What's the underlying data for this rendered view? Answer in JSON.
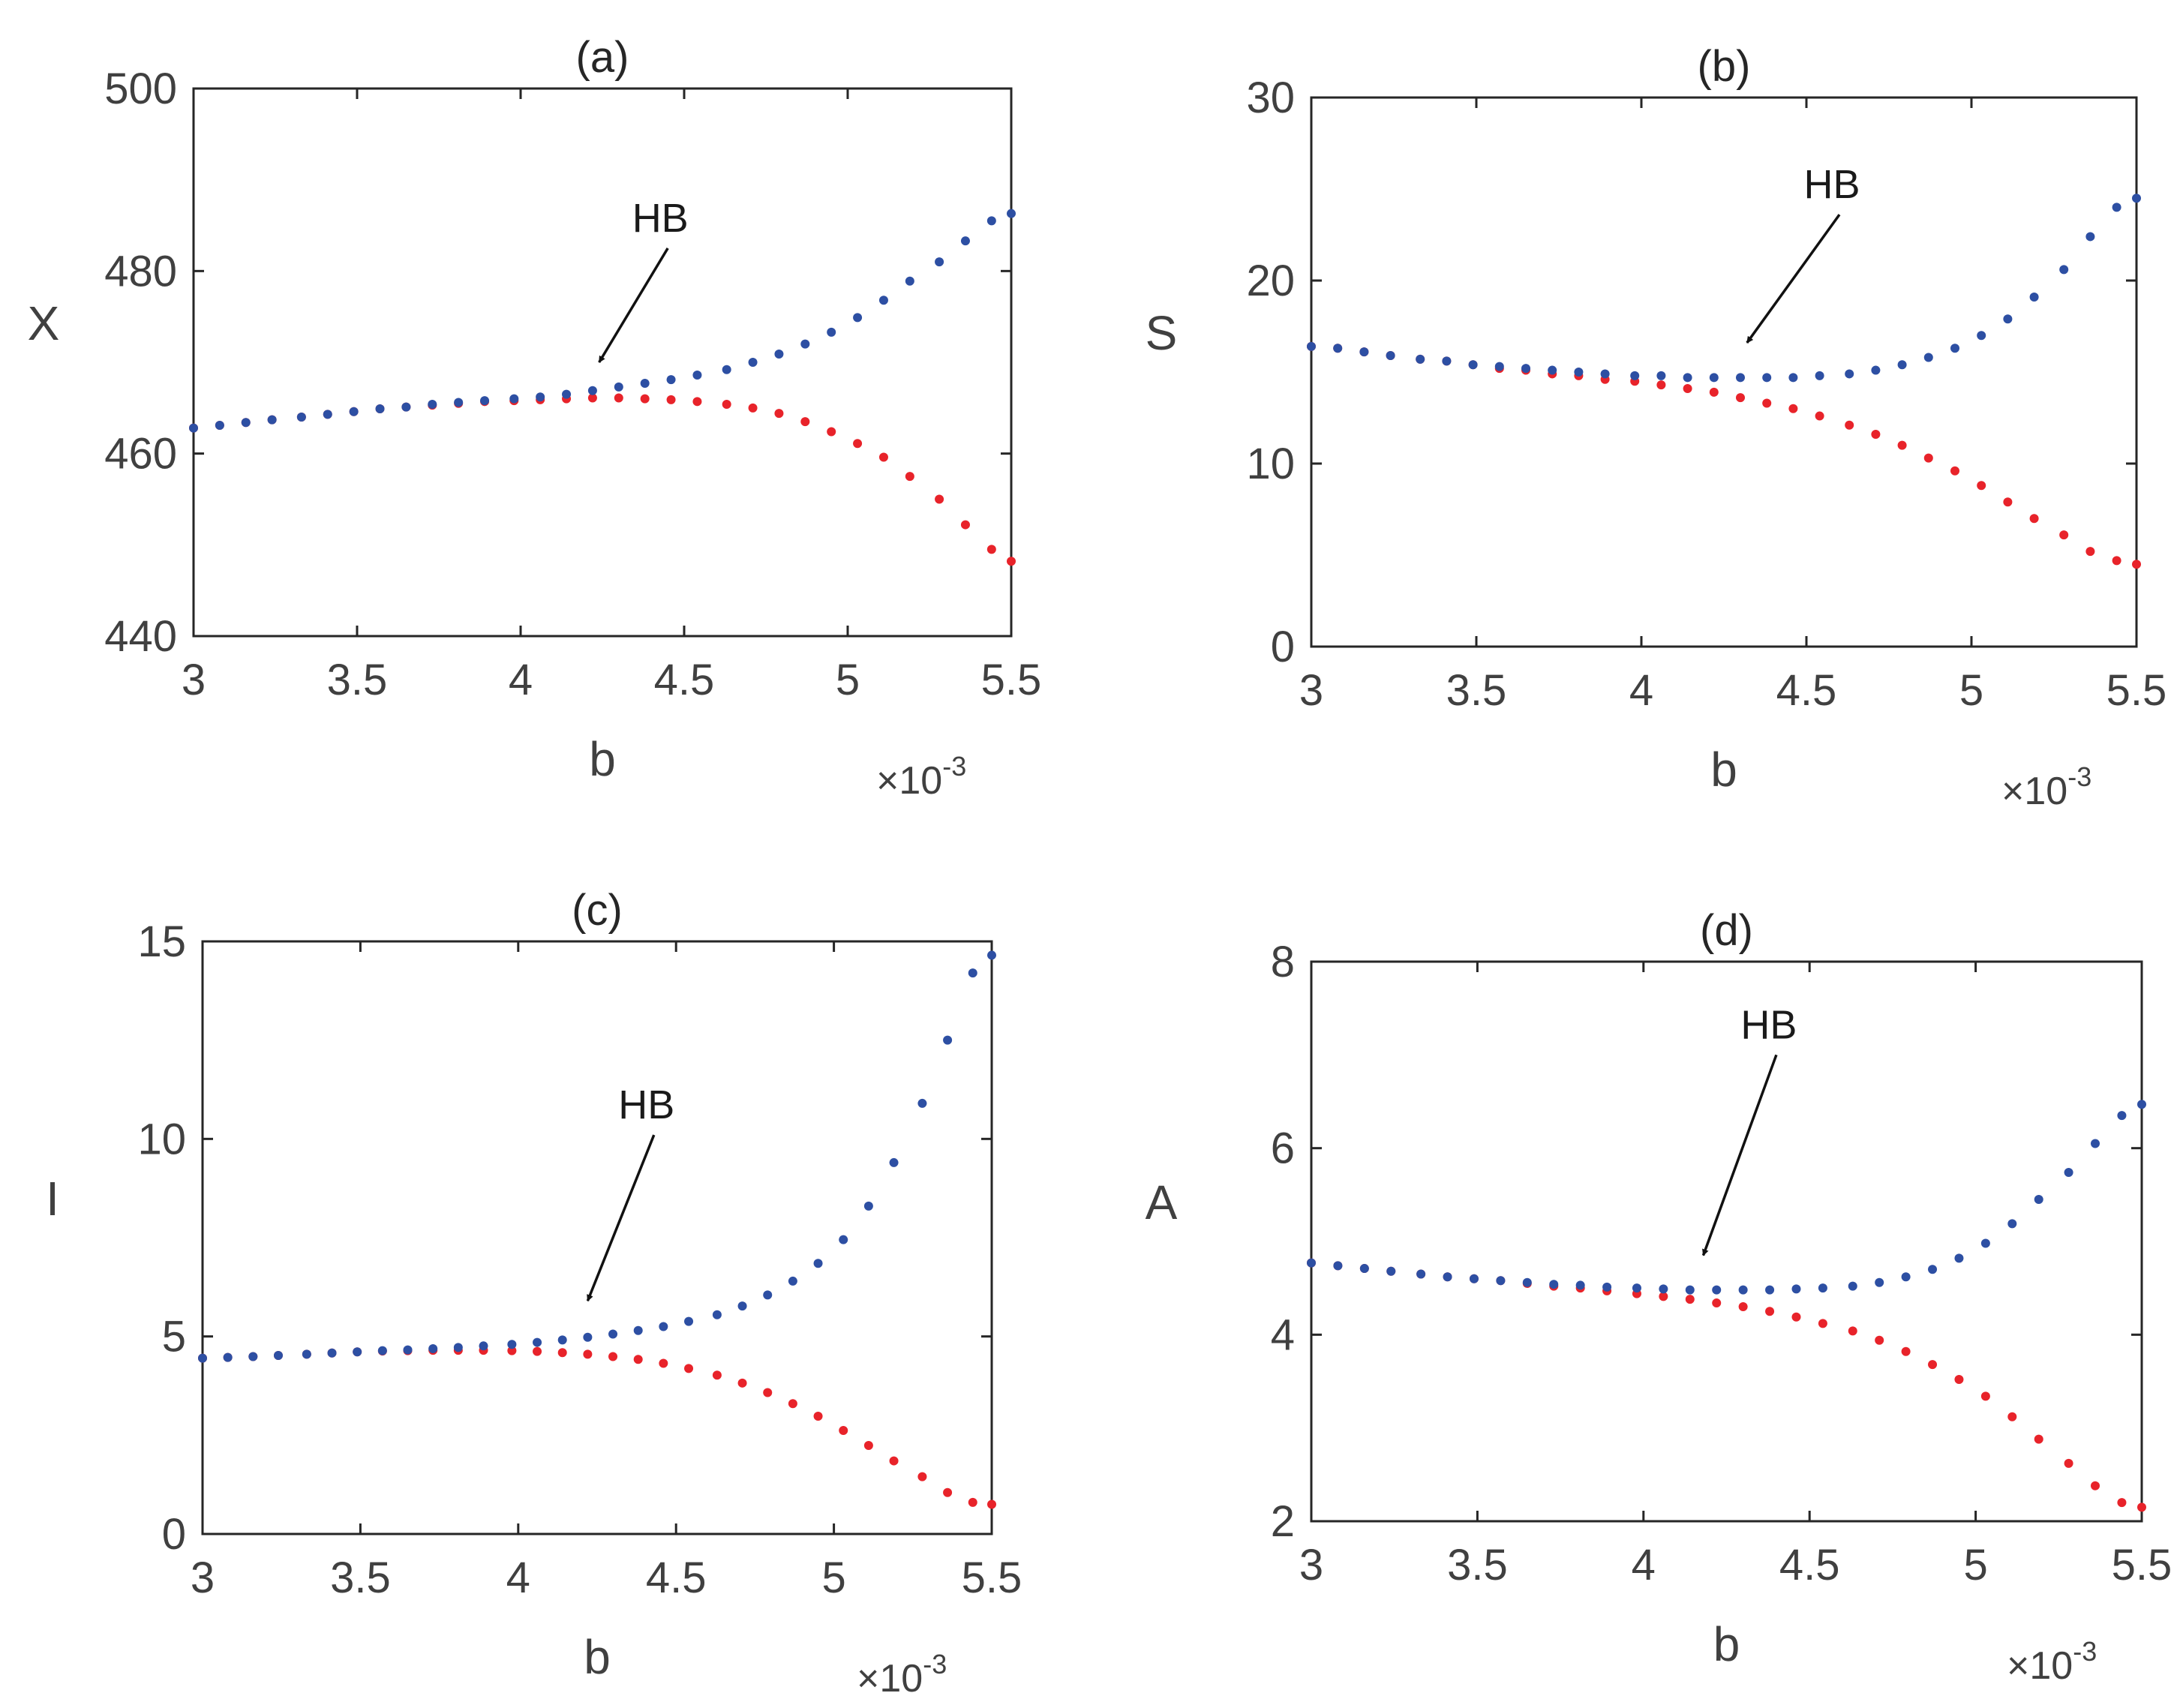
{
  "colors": {
    "upper": "#2d4fa3",
    "lower": "#e8232a",
    "axis": "#262626",
    "text": "#404040"
  },
  "chart_data": [
    {
      "id": "a",
      "type": "scatter",
      "title": "(a)",
      "xlabel": "b",
      "ylabel": "X",
      "x_multiplier_base": "×10",
      "x_multiplier_exp": "-3",
      "xlim": [
        3,
        5.5
      ],
      "ylim": [
        440,
        500
      ],
      "xticks": [
        3,
        3.5,
        4,
        4.5,
        5,
        5.5
      ],
      "xtick_labels": [
        "3",
        "3.5",
        "4",
        "4.5",
        "5",
        "5.5"
      ],
      "yticks": [
        440,
        460,
        480,
        500
      ],
      "ytick_labels": [
        "440",
        "460",
        "480",
        "500"
      ],
      "annotation": {
        "text": "HB",
        "arrow_tail": [
          4.45,
          482.5
        ],
        "arrow_head": [
          4.24,
          470
        ]
      },
      "series": [
        {
          "name": "upper",
          "x": [
            3.0,
            3.08,
            3.16,
            3.24,
            3.33,
            3.41,
            3.49,
            3.57,
            3.65,
            3.73,
            3.81,
            3.89,
            3.98,
            4.06,
            4.14,
            4.22,
            4.3,
            4.38,
            4.46,
            4.54,
            4.63,
            4.71,
            4.79,
            4.87,
            4.95,
            5.03,
            5.11,
            5.19,
            5.28,
            5.36,
            5.44,
            5.5
          ],
          "y": [
            462.8,
            463.1,
            463.4,
            463.7,
            464.0,
            464.3,
            464.6,
            464.9,
            465.1,
            465.4,
            465.6,
            465.8,
            466.0,
            466.2,
            466.5,
            466.9,
            467.3,
            467.7,
            468.1,
            468.6,
            469.2,
            470.0,
            470.9,
            472.0,
            473.3,
            474.9,
            476.8,
            478.9,
            481.0,
            483.3,
            485.5,
            486.3
          ]
        },
        {
          "name": "lower",
          "x": [
            3.0,
            3.08,
            3.16,
            3.24,
            3.33,
            3.41,
            3.49,
            3.57,
            3.65,
            3.73,
            3.81,
            3.89,
            3.98,
            4.06,
            4.14,
            4.22,
            4.3,
            4.38,
            4.46,
            4.54,
            4.63,
            4.71,
            4.79,
            4.87,
            4.95,
            5.03,
            5.11,
            5.19,
            5.28,
            5.36,
            5.44,
            5.5
          ],
          "y": [
            462.8,
            463.1,
            463.4,
            463.7,
            464.0,
            464.3,
            464.6,
            464.9,
            465.1,
            465.3,
            465.5,
            465.7,
            465.8,
            465.9,
            466.0,
            466.1,
            466.1,
            466.0,
            465.9,
            465.7,
            465.4,
            465.0,
            464.4,
            463.5,
            462.4,
            461.1,
            459.6,
            457.5,
            455.0,
            452.2,
            449.5,
            448.2
          ]
        }
      ]
    },
    {
      "id": "b",
      "type": "scatter",
      "title": "(b)",
      "xlabel": "b",
      "ylabel": "S",
      "x_multiplier_base": "×10",
      "x_multiplier_exp": "-3",
      "xlim": [
        3,
        5.5
      ],
      "ylim": [
        0,
        30
      ],
      "xticks": [
        3,
        3.5,
        4,
        4.5,
        5,
        5.5
      ],
      "xtick_labels": [
        "3",
        "3.5",
        "4",
        "4.5",
        "5",
        "5.5"
      ],
      "yticks": [
        0,
        10,
        20,
        30
      ],
      "ytick_labels": [
        "0",
        "10",
        "20",
        "30"
      ],
      "annotation": {
        "text": "HB",
        "arrow_tail": [
          4.6,
          23.6
        ],
        "arrow_head": [
          4.32,
          16.6
        ]
      },
      "series": [
        {
          "name": "upper",
          "x": [
            3.0,
            3.08,
            3.16,
            3.24,
            3.33,
            3.41,
            3.49,
            3.57,
            3.65,
            3.73,
            3.81,
            3.89,
            3.98,
            4.06,
            4.14,
            4.22,
            4.3,
            4.38,
            4.46,
            4.54,
            4.63,
            4.71,
            4.79,
            4.87,
            4.95,
            5.03,
            5.11,
            5.19,
            5.28,
            5.36,
            5.44,
            5.5
          ],
          "y": [
            16.4,
            16.3,
            16.1,
            15.9,
            15.7,
            15.6,
            15.4,
            15.3,
            15.2,
            15.1,
            15.0,
            14.9,
            14.8,
            14.8,
            14.7,
            14.7,
            14.7,
            14.7,
            14.7,
            14.8,
            14.9,
            15.1,
            15.4,
            15.8,
            16.3,
            17.0,
            17.9,
            19.1,
            20.6,
            22.4,
            24.0,
            24.5
          ]
        },
        {
          "name": "lower",
          "x": [
            3.0,
            3.08,
            3.16,
            3.24,
            3.33,
            3.41,
            3.49,
            3.57,
            3.65,
            3.73,
            3.81,
            3.89,
            3.98,
            4.06,
            4.14,
            4.22,
            4.3,
            4.38,
            4.46,
            4.54,
            4.63,
            4.71,
            4.79,
            4.87,
            4.95,
            5.03,
            5.11,
            5.19,
            5.28,
            5.36,
            5.44,
            5.5
          ],
          "y": [
            16.4,
            16.3,
            16.1,
            15.9,
            15.7,
            15.6,
            15.4,
            15.2,
            15.1,
            14.9,
            14.8,
            14.6,
            14.5,
            14.3,
            14.1,
            13.9,
            13.6,
            13.3,
            13.0,
            12.6,
            12.1,
            11.6,
            11.0,
            10.3,
            9.6,
            8.8,
            7.9,
            7.0,
            6.1,
            5.2,
            4.7,
            4.5
          ]
        }
      ]
    },
    {
      "id": "c",
      "type": "scatter",
      "title": "(c)",
      "xlabel": "b",
      "ylabel": "I",
      "x_multiplier_base": "×10",
      "x_multiplier_exp": "-3",
      "xlim": [
        3,
        5.5
      ],
      "ylim": [
        0,
        15
      ],
      "xticks": [
        3,
        3.5,
        4,
        4.5,
        5,
        5.5
      ],
      "xtick_labels": [
        "3",
        "3.5",
        "4",
        "4.5",
        "5",
        "5.5"
      ],
      "yticks": [
        0,
        5,
        10,
        15
      ],
      "ytick_labels": [
        "0",
        "5",
        "10",
        "15"
      ],
      "annotation": {
        "text": "HB",
        "arrow_tail": [
          4.43,
          10.1
        ],
        "arrow_head": [
          4.22,
          5.9
        ]
      },
      "series": [
        {
          "name": "upper",
          "x": [
            3.0,
            3.08,
            3.16,
            3.24,
            3.33,
            3.41,
            3.49,
            3.57,
            3.65,
            3.73,
            3.81,
            3.89,
            3.98,
            4.06,
            4.14,
            4.22,
            4.3,
            4.38,
            4.46,
            4.54,
            4.63,
            4.71,
            4.79,
            4.87,
            4.95,
            5.03,
            5.11,
            5.19,
            5.28,
            5.36,
            5.44,
            5.5
          ],
          "y": [
            4.45,
            4.47,
            4.49,
            4.52,
            4.55,
            4.58,
            4.61,
            4.64,
            4.66,
            4.69,
            4.72,
            4.76,
            4.8,
            4.85,
            4.91,
            4.98,
            5.06,
            5.15,
            5.25,
            5.38,
            5.55,
            5.77,
            6.05,
            6.4,
            6.85,
            7.45,
            8.3,
            9.4,
            10.9,
            12.5,
            14.2,
            14.65
          ]
        },
        {
          "name": "lower",
          "x": [
            3.0,
            3.08,
            3.16,
            3.24,
            3.33,
            3.41,
            3.49,
            3.57,
            3.65,
            3.73,
            3.81,
            3.89,
            3.98,
            4.06,
            4.14,
            4.22,
            4.3,
            4.38,
            4.46,
            4.54,
            4.63,
            4.71,
            4.79,
            4.87,
            4.95,
            5.03,
            5.11,
            5.19,
            5.28,
            5.36,
            5.44,
            5.5
          ],
          "y": [
            4.45,
            4.47,
            4.49,
            4.52,
            4.55,
            4.58,
            4.61,
            4.63,
            4.64,
            4.65,
            4.65,
            4.65,
            4.64,
            4.62,
            4.59,
            4.55,
            4.49,
            4.42,
            4.32,
            4.19,
            4.02,
            3.82,
            3.58,
            3.3,
            2.98,
            2.62,
            2.24,
            1.85,
            1.45,
            1.05,
            0.8,
            0.75
          ]
        }
      ]
    },
    {
      "id": "d",
      "type": "scatter",
      "title": "(d)",
      "xlabel": "b",
      "ylabel": "A",
      "x_multiplier_base": "×10",
      "x_multiplier_exp": "-3",
      "xlim": [
        3,
        5.5
      ],
      "ylim": [
        2,
        8
      ],
      "xticks": [
        3,
        3.5,
        4,
        4.5,
        5,
        5.5
      ],
      "xtick_labels": [
        "3",
        "3.5",
        "4",
        "4.5",
        "5",
        "5.5"
      ],
      "yticks": [
        2,
        4,
        6,
        8
      ],
      "ytick_labels": [
        "2",
        "4",
        "6",
        "8"
      ],
      "annotation": {
        "text": "HB",
        "arrow_tail": [
          4.4,
          7.0
        ],
        "arrow_head": [
          4.18,
          4.85
        ]
      },
      "series": [
        {
          "name": "upper",
          "x": [
            3.0,
            3.08,
            3.16,
            3.24,
            3.33,
            3.41,
            3.49,
            3.57,
            3.65,
            3.73,
            3.81,
            3.89,
            3.98,
            4.06,
            4.14,
            4.22,
            4.3,
            4.38,
            4.46,
            4.54,
            4.63,
            4.71,
            4.79,
            4.87,
            4.95,
            5.03,
            5.11,
            5.19,
            5.28,
            5.36,
            5.44,
            5.5
          ],
          "y": [
            4.77,
            4.74,
            4.71,
            4.68,
            4.65,
            4.62,
            4.6,
            4.58,
            4.56,
            4.54,
            4.53,
            4.51,
            4.5,
            4.49,
            4.48,
            4.48,
            4.48,
            4.48,
            4.49,
            4.5,
            4.52,
            4.56,
            4.62,
            4.7,
            4.82,
            4.98,
            5.19,
            5.45,
            5.74,
            6.05,
            6.35,
            6.47
          ]
        },
        {
          "name": "lower",
          "x": [
            3.0,
            3.08,
            3.16,
            3.24,
            3.33,
            3.41,
            3.49,
            3.57,
            3.65,
            3.73,
            3.81,
            3.89,
            3.98,
            4.06,
            4.14,
            4.22,
            4.3,
            4.38,
            4.46,
            4.54,
            4.63,
            4.71,
            4.79,
            4.87,
            4.95,
            5.03,
            5.11,
            5.19,
            5.28,
            5.36,
            5.44,
            5.5
          ],
          "y": [
            4.77,
            4.74,
            4.71,
            4.68,
            4.65,
            4.62,
            4.6,
            4.58,
            4.55,
            4.52,
            4.5,
            4.47,
            4.44,
            4.41,
            4.38,
            4.34,
            4.3,
            4.25,
            4.19,
            4.12,
            4.04,
            3.94,
            3.82,
            3.68,
            3.52,
            3.34,
            3.12,
            2.88,
            2.62,
            2.38,
            2.2,
            2.15
          ]
        }
      ]
    }
  ]
}
